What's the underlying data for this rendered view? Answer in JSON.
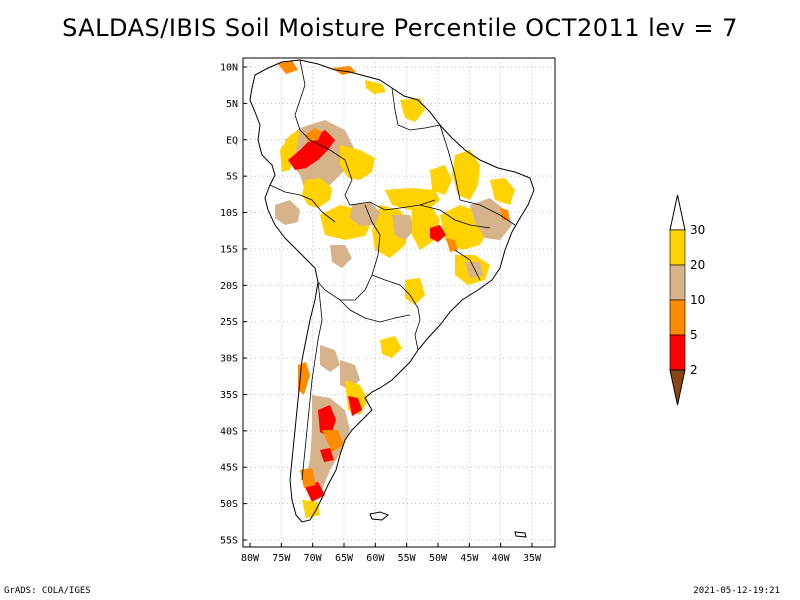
{
  "title": "SALDAS/IBIS Soil Moisture Percentile OCT2011 lev = 7",
  "map": {
    "region": "South America",
    "lat_labels": [
      "10N",
      "5N",
      "EQ",
      "5S",
      "10S",
      "15S",
      "20S",
      "25S",
      "30S",
      "35S",
      "40S",
      "45S",
      "50S",
      "55S"
    ],
    "lon_labels": [
      "80W",
      "75W",
      "70W",
      "65W",
      "60W",
      "55W",
      "50W",
      "45W",
      "40W",
      "35W"
    ],
    "lat_values": [
      10,
      5,
      0,
      -5,
      -10,
      -15,
      -20,
      -25,
      -30,
      -35,
      -40,
      -45,
      -50,
      -55
    ],
    "lon_values": [
      -80,
      -75,
      -70,
      -65,
      -60,
      -55,
      -50,
      -45,
      -40,
      -35
    ]
  },
  "colorbar": {
    "labels": [
      "30",
      "20",
      "10",
      "5",
      "2"
    ],
    "colors": {
      "above": "#ffffff",
      "p20_30": "#ffd200",
      "p10_20": "#d7b38b",
      "p5_10": "#ff8c00",
      "p2_5": "#ff0000",
      "below": "#8b4513"
    }
  },
  "colors": {
    "coast": "#000000",
    "grid": "#aaaaaa"
  },
  "footer": {
    "left": "GrADS: COLA/IGES",
    "right": "2021-05-12-19:21"
  }
}
